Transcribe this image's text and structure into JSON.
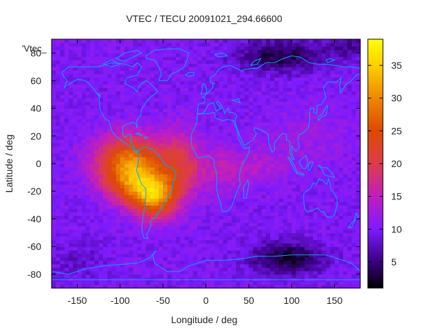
{
  "chart_data": {
    "type": "heatmap",
    "title": "VTEC / TECU 20091021_294.66600",
    "xlabel": "Longitude / deg",
    "ylabel": "Latitude / deg",
    "series_key": "'Vtec_",
    "xlim": [
      -180,
      180
    ],
    "ylim": [
      -90,
      90
    ],
    "x_ticks": [
      {
        "value": -150,
        "label": "-150"
      },
      {
        "value": -100,
        "label": "-100"
      },
      {
        "value": -50,
        "label": "-50"
      },
      {
        "value": 0,
        "label": "0"
      },
      {
        "value": 50,
        "label": "50"
      },
      {
        "value": 100,
        "label": "100"
      },
      {
        "value": 150,
        "label": "150"
      }
    ],
    "y_ticks": [
      {
        "value": 80,
        "label": "80"
      },
      {
        "value": 60,
        "label": "60"
      },
      {
        "value": 40,
        "label": "40"
      },
      {
        "value": 20,
        "label": "20"
      },
      {
        "value": 0,
        "label": "0"
      },
      {
        "value": -20,
        "label": "-20"
      },
      {
        "value": -40,
        "label": "-40"
      },
      {
        "value": -60,
        "label": "-60"
      },
      {
        "value": -80,
        "label": "-80"
      }
    ],
    "colorbar": {
      "range": [
        1,
        39
      ],
      "ticks": [
        {
          "value": 5,
          "label": "5"
        },
        {
          "value": 10,
          "label": "10"
        },
        {
          "value": 15,
          "label": "15"
        },
        {
          "value": 20,
          "label": "20"
        },
        {
          "value": 25,
          "label": "25"
        },
        {
          "value": 30,
          "label": "30"
        },
        {
          "value": 35,
          "label": "35"
        }
      ],
      "stops": [
        {
          "v": 1,
          "color": "#000000"
        },
        {
          "v": 5,
          "color": "#3a0080"
        },
        {
          "v": 10,
          "color": "#7d1bff"
        },
        {
          "v": 15,
          "color": "#c01ec0"
        },
        {
          "v": 20,
          "color": "#dd3c4a"
        },
        {
          "v": 25,
          "color": "#dd4a00"
        },
        {
          "v": 30,
          "color": "#ee8800"
        },
        {
          "v": 35,
          "color": "#ffd000"
        },
        {
          "v": 39,
          "color": "#ffff00"
        }
      ]
    },
    "field": {
      "base": 10,
      "blobs": [
        {
          "lon": -88,
          "lat": 2,
          "amp": 18,
          "slon": 28,
          "slat": 13
        },
        {
          "lon": -60,
          "lat": -23,
          "amp": 20,
          "slon": 18,
          "slat": 11
        },
        {
          "lon": -88,
          "lat": -15,
          "amp": 10,
          "slon": 22,
          "slat": 10
        },
        {
          "lon": -30,
          "lat": 0,
          "amp": 8,
          "slon": 16,
          "slat": 18
        },
        {
          "lon": 10,
          "lat": -5,
          "amp": 4,
          "slon": 25,
          "slat": 12
        },
        {
          "lon": 60,
          "lat": -2,
          "amp": 3,
          "slon": 30,
          "slat": 10
        },
        {
          "lon": 120,
          "lat": 20,
          "amp": 2,
          "slon": 40,
          "slat": 15
        },
        {
          "lon": 95,
          "lat": -68,
          "amp": -8,
          "slon": 30,
          "slat": 8
        },
        {
          "lon": 85,
          "lat": 78,
          "amp": -7,
          "slon": 35,
          "slat": 8
        },
        {
          "lon": 170,
          "lat": 85,
          "amp": -4,
          "slon": 25,
          "slat": 6
        },
        {
          "lon": -150,
          "lat": -70,
          "amp": -2,
          "slon": 25,
          "slat": 10
        }
      ]
    },
    "overlay": "coastlines",
    "colors": {
      "coastline": "#00a8ff",
      "frame": "#000000"
    }
  }
}
